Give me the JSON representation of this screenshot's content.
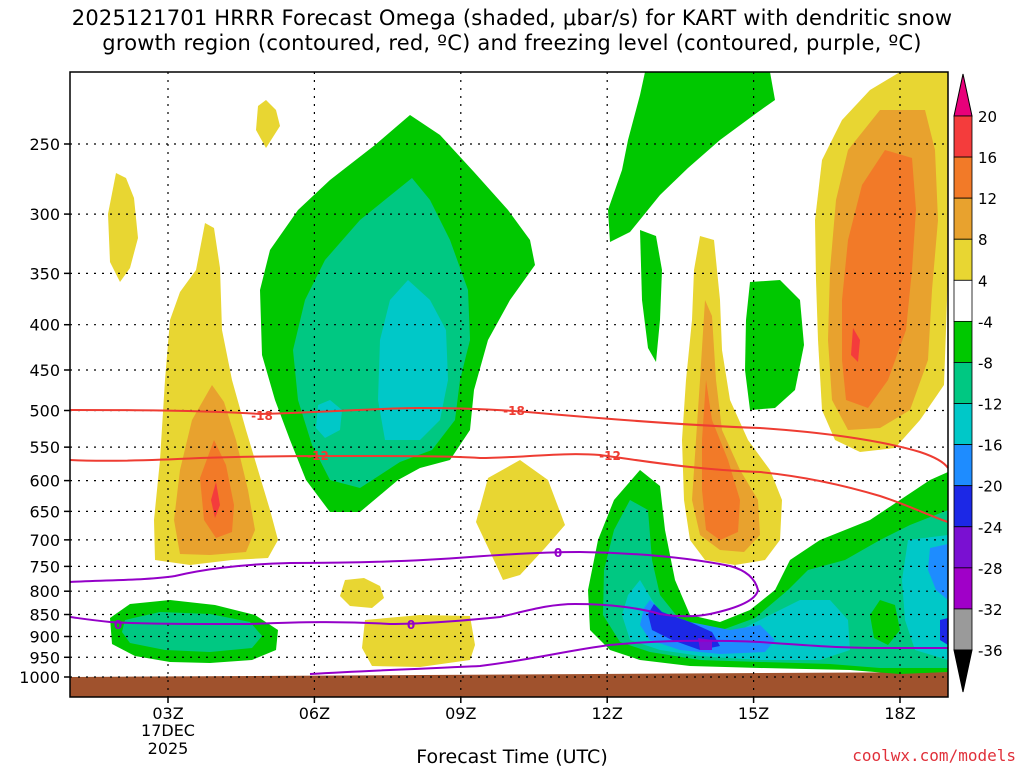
{
  "title": {
    "line1": "2025121701 HRRR Forecast Omega (shaded, μbar/s) for KART with dendritic snow",
    "line2": "growth region (contoured, red, ºC) and freezing level (contoured, purple, ºC)"
  },
  "footer": {
    "xaxis_label": "Forecast Time (UTC)",
    "credit": "coolwx.com/models"
  },
  "chart_data": {
    "type": "heatmap",
    "title": "2025121701 HRRR Forecast Omega (shaded, μbar/s) for KART with dendritic snow growth region (contoured, red, ºC) and freezing level (contoured, purple, ºC)",
    "xlabel": "Forecast Time (UTC)",
    "x_ticks": [
      "03Z",
      "06Z",
      "09Z",
      "12Z",
      "15Z",
      "18Z"
    ],
    "x_date_label": [
      "17DEC",
      "2025"
    ],
    "y_ticks": [
      250,
      300,
      350,
      400,
      450,
      500,
      550,
      600,
      650,
      700,
      750,
      800,
      850,
      900,
      950,
      1000
    ],
    "y_scale": "log pressure (hPa)",
    "grid": true,
    "colorbar": {
      "levels": [
        20,
        16,
        12,
        8,
        4,
        -4,
        -8,
        -12,
        -16,
        -20,
        -24,
        -28,
        -32,
        -36
      ],
      "colors": [
        "#e8007a",
        "#f43c3c",
        "#f27a28",
        "#e8a22e",
        "#e8d632",
        "#ffffff",
        "#00c800",
        "#00c882",
        "#00c8c8",
        "#1e8cff",
        "#1c28e6",
        "#7a10d2",
        "#a000c8",
        "#9a9a9a",
        "#000000"
      ]
    },
    "contour_labels": {
      "dgz": [
        "-18",
        "-18",
        "-12",
        "-12"
      ],
      "freezing": [
        "0",
        "0",
        "0"
      ]
    },
    "shading_colors": {
      "w4": "#e8d632",
      "w8": "#e8a22e",
      "w12": "#f27a28",
      "w16": "#f43c3c",
      "c4": "#00c800",
      "c8": "#00c882",
      "c12": "#00c8c8",
      "c16": "#1e8cff",
      "c20": "#1c28e6",
      "ground": "#a0522d",
      "dgz_line": "#ee3c32",
      "fz_line": "#9400c8"
    }
  }
}
